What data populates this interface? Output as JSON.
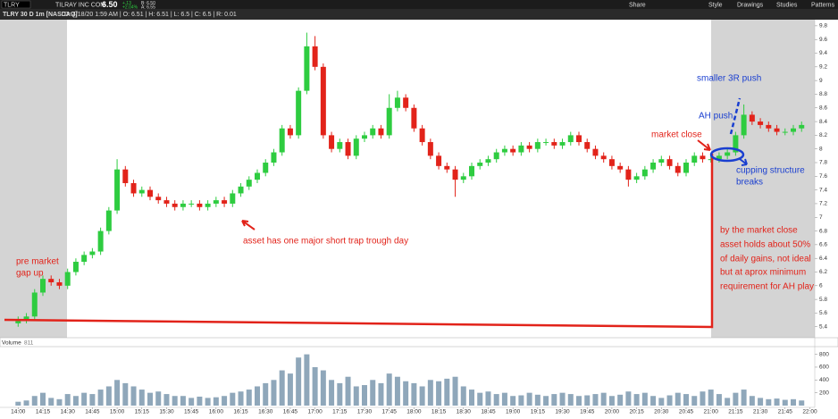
{
  "header": {
    "symbol": "TLRY",
    "company": "TILRAY INC COM",
    "last": "6.50",
    "change": "+.13",
    "change_pct": "+2.04%",
    "bid": "B: 6.50",
    "ask": "A: 6.55",
    "descriptor": "TLRY 30 D 1m [NASDAQ]",
    "readout": "D: 4/18/20 1:59 AM | O: 6.51 | H: 6.51 | L: 6.5 | C: 6.5 | R: 0.01"
  },
  "toolbar": [
    "Share",
    "Style",
    "Drawings",
    "Studies",
    "Patterns"
  ],
  "volume_panel": {
    "title": "Volume",
    "reading": "811"
  },
  "annotations": [
    {
      "lines": [
        "pre market",
        "gap up"
      ]
    },
    {
      "lines": [
        "asset has one major short trap trough day"
      ]
    },
    {
      "lines": [
        "market close"
      ]
    },
    {
      "lines": [
        "smaller 3R push"
      ]
    },
    {
      "lines": [
        "AH push"
      ]
    },
    {
      "lines": [
        "cupping structure",
        "breaks"
      ]
    },
    {
      "lines": [
        "by the market close",
        "asset holds about 50%",
        "of daily gains, not ideal",
        "but at aprox minimum",
        "requirement for AH play"
      ]
    }
  ],
  "chart_data": {
    "type": "candlestick",
    "up_color": "#2ecc40",
    "down_color": "#e2231a",
    "volume_color": "#8fa7ba",
    "xlim": [
      "13:49",
      "22:03"
    ],
    "xticks": [
      "14:00",
      "14:15",
      "14:30",
      "14:45",
      "15:00",
      "15:15",
      "15:30",
      "15:45",
      "16:00",
      "16:15",
      "16:30",
      "16:45",
      "17:00",
      "17:15",
      "17:30",
      "17:45",
      "18:00",
      "18:15",
      "18:30",
      "18:45",
      "19:00",
      "19:15",
      "19:30",
      "19:45",
      "20:00",
      "20:15",
      "20:30",
      "20:45",
      "21:00",
      "21:15",
      "21:30",
      "21:45",
      "22:00"
    ],
    "ylim": [
      5.24,
      9.89
    ],
    "yticks": [
      5.4,
      5.6,
      5.8,
      6,
      6.2,
      6.4,
      6.6,
      6.8,
      7,
      7.2,
      7.4,
      7.6,
      7.8,
      8,
      8.2,
      8.4,
      8.6,
      8.8,
      9,
      9.2,
      9.4,
      9.6,
      9.8
    ],
    "volume_ylim": [
      0,
      920
    ],
    "volume_yticks": [
      200,
      400,
      600,
      800
    ],
    "x": [
      "14:00",
      "14:05",
      "14:10",
      "14:15",
      "14:20",
      "14:25",
      "14:30",
      "14:35",
      "14:40",
      "14:45",
      "14:50",
      "14:55",
      "15:00",
      "15:05",
      "15:10",
      "15:15",
      "15:20",
      "15:25",
      "15:30",
      "15:35",
      "15:40",
      "15:45",
      "15:50",
      "15:55",
      "16:00",
      "16:05",
      "16:10",
      "16:15",
      "16:20",
      "16:25",
      "16:30",
      "16:35",
      "16:40",
      "16:45",
      "16:50",
      "16:55",
      "17:00",
      "17:05",
      "17:10",
      "17:15",
      "17:20",
      "17:25",
      "17:30",
      "17:35",
      "17:40",
      "17:45",
      "17:50",
      "17:55",
      "18:00",
      "18:05",
      "18:10",
      "18:15",
      "18:20",
      "18:25",
      "18:30",
      "18:35",
      "18:40",
      "18:45",
      "18:50",
      "18:55",
      "19:00",
      "19:05",
      "19:10",
      "19:15",
      "19:20",
      "19:25",
      "19:30",
      "19:35",
      "19:40",
      "19:45",
      "19:50",
      "19:55",
      "20:00",
      "20:05",
      "20:10",
      "20:15",
      "20:20",
      "20:25",
      "20:30",
      "20:35",
      "20:40",
      "20:45",
      "20:50",
      "20:55",
      "21:00",
      "21:05",
      "21:10",
      "21:15",
      "21:20",
      "21:25",
      "21:30",
      "21:35",
      "21:40",
      "21:45",
      "21:50",
      "21:55"
    ],
    "open": [
      5.45,
      5.5,
      5.55,
      5.9,
      6.1,
      6.05,
      6.0,
      6.2,
      6.35,
      6.45,
      6.5,
      6.8,
      7.1,
      7.7,
      7.5,
      7.35,
      7.4,
      7.3,
      7.25,
      7.2,
      7.15,
      7.2,
      7.2,
      7.15,
      7.2,
      7.25,
      7.2,
      7.35,
      7.45,
      7.55,
      7.65,
      7.8,
      7.95,
      8.3,
      8.2,
      8.85,
      9.5,
      9.2,
      8.2,
      8.0,
      8.1,
      7.9,
      8.15,
      8.2,
      8.3,
      8.2,
      8.6,
      8.75,
      8.6,
      8.3,
      8.1,
      7.9,
      7.75,
      7.7,
      7.55,
      7.6,
      7.75,
      7.8,
      7.85,
      7.95,
      8.0,
      7.95,
      8.05,
      8.0,
      8.1,
      8.1,
      8.05,
      8.1,
      8.2,
      8.1,
      8.0,
      7.9,
      7.85,
      7.75,
      7.7,
      7.55,
      7.6,
      7.7,
      7.8,
      7.85,
      7.75,
      7.65,
      7.8,
      7.9,
      7.85,
      7.85,
      7.9,
      7.95,
      8.2,
      8.5,
      8.4,
      8.35,
      8.3,
      8.25,
      8.25,
      8.3
    ],
    "high": [
      5.55,
      5.6,
      5.95,
      6.15,
      6.15,
      6.1,
      6.25,
      6.4,
      6.5,
      6.55,
      6.85,
      7.15,
      7.85,
      7.75,
      7.55,
      7.45,
      7.45,
      7.35,
      7.3,
      7.25,
      7.25,
      7.25,
      7.25,
      7.25,
      7.3,
      7.3,
      7.4,
      7.5,
      7.6,
      7.7,
      7.85,
      8.0,
      8.35,
      8.35,
      8.9,
      9.7,
      9.65,
      9.25,
      8.25,
      8.15,
      8.15,
      8.2,
      8.25,
      8.35,
      8.35,
      8.8,
      8.85,
      8.8,
      8.65,
      8.35,
      8.15,
      7.95,
      7.8,
      7.75,
      7.65,
      7.8,
      7.85,
      7.9,
      8.0,
      8.05,
      8.05,
      8.1,
      8.1,
      8.15,
      8.15,
      8.15,
      8.15,
      8.25,
      8.25,
      8.15,
      8.05,
      7.95,
      7.9,
      7.8,
      7.75,
      7.65,
      7.75,
      7.85,
      7.9,
      7.9,
      7.8,
      7.85,
      7.95,
      7.95,
      7.9,
      7.95,
      8.0,
      8.25,
      8.65,
      8.55,
      8.45,
      8.4,
      8.35,
      8.3,
      8.35,
      8.4
    ],
    "low": [
      5.4,
      5.45,
      5.5,
      5.85,
      6.0,
      5.95,
      5.95,
      6.15,
      6.3,
      6.4,
      6.45,
      6.75,
      7.05,
      7.45,
      7.3,
      7.3,
      7.25,
      7.2,
      7.15,
      7.1,
      7.1,
      7.15,
      7.1,
      7.1,
      7.15,
      7.15,
      7.15,
      7.3,
      7.4,
      7.5,
      7.6,
      7.75,
      7.9,
      8.15,
      8.15,
      8.8,
      9.15,
      8.15,
      7.95,
      7.95,
      7.85,
      7.85,
      8.1,
      8.15,
      8.15,
      8.15,
      8.55,
      8.55,
      8.25,
      8.05,
      7.85,
      7.7,
      7.65,
      7.3,
      7.5,
      7.55,
      7.7,
      7.75,
      7.8,
      7.9,
      7.9,
      7.9,
      7.95,
      7.95,
      8.05,
      8.0,
      8.0,
      8.05,
      8.05,
      7.95,
      7.85,
      7.8,
      7.7,
      7.65,
      7.45,
      7.5,
      7.55,
      7.65,
      7.75,
      7.7,
      7.6,
      7.6,
      7.75,
      7.8,
      7.8,
      7.8,
      7.85,
      7.9,
      8.15,
      8.35,
      8.3,
      8.25,
      8.2,
      8.2,
      8.2,
      8.25
    ],
    "close": [
      5.5,
      5.55,
      5.9,
      6.1,
      6.05,
      6.0,
      6.2,
      6.35,
      6.45,
      6.5,
      6.8,
      7.1,
      7.7,
      7.5,
      7.35,
      7.4,
      7.3,
      7.25,
      7.2,
      7.15,
      7.2,
      7.2,
      7.15,
      7.2,
      7.25,
      7.2,
      7.35,
      7.45,
      7.55,
      7.65,
      7.8,
      7.95,
      8.3,
      8.2,
      8.85,
      9.5,
      9.2,
      8.2,
      8.0,
      8.1,
      7.9,
      8.15,
      8.2,
      8.3,
      8.2,
      8.6,
      8.75,
      8.6,
      8.3,
      8.1,
      7.9,
      7.75,
      7.7,
      7.55,
      7.6,
      7.75,
      7.8,
      7.85,
      7.95,
      8.0,
      7.95,
      8.05,
      8.0,
      8.1,
      8.1,
      8.05,
      8.1,
      8.2,
      8.1,
      8.0,
      7.9,
      7.85,
      7.75,
      7.7,
      7.55,
      7.6,
      7.7,
      7.8,
      7.85,
      7.75,
      7.65,
      7.8,
      7.9,
      7.85,
      7.85,
      7.9,
      7.95,
      8.2,
      8.5,
      8.4,
      8.35,
      8.3,
      8.25,
      8.25,
      8.3,
      8.35
    ],
    "volume": [
      60,
      80,
      150,
      200,
      120,
      100,
      180,
      150,
      200,
      180,
      250,
      300,
      400,
      350,
      300,
      250,
      200,
      220,
      180,
      150,
      150,
      120,
      140,
      120,
      130,
      150,
      200,
      220,
      250,
      300,
      350,
      400,
      550,
      500,
      750,
      800,
      600,
      550,
      400,
      350,
      450,
      300,
      320,
      400,
      350,
      500,
      450,
      380,
      350,
      300,
      400,
      380,
      420,
      450,
      300,
      250,
      200,
      220,
      180,
      200,
      150,
      160,
      200,
      170,
      150,
      180,
      200,
      180,
      150,
      160,
      180,
      200,
      150,
      170,
      220,
      180,
      200,
      150,
      120,
      160,
      200,
      180,
      150,
      220,
      250,
      180,
      120,
      200,
      250,
      150,
      120,
      100,
      110,
      90,
      100,
      80
    ]
  }
}
